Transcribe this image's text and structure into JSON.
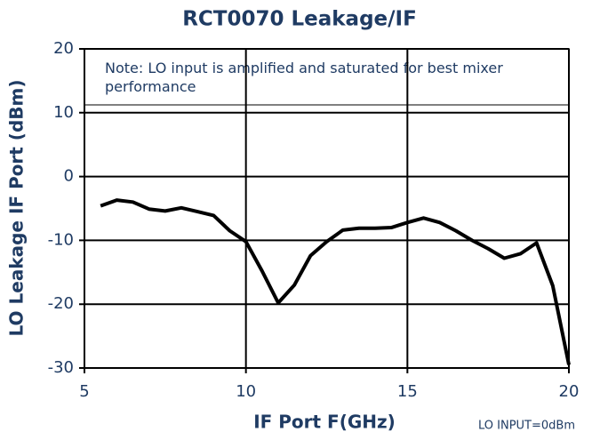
{
  "chart_data": {
    "type": "line",
    "title": "RCT0070 Leakage/IF",
    "xlabel": "IF Port F(GHz)",
    "ylabel": "LO Leakage IF Port (dBm)",
    "annotations": [
      "Note: LO input is amplified and saturated for best mixer performance",
      "LO INPUT=0dBm"
    ],
    "x": [
      5.5,
      6,
      6.5,
      7,
      7.5,
      8,
      8.5,
      9,
      9.5,
      10,
      10.5,
      11,
      11.5,
      12,
      12.5,
      13,
      13.5,
      14,
      14.5,
      15,
      15.5,
      16,
      16.5,
      17,
      17.5,
      18,
      18.5,
      19,
      19.5,
      20
    ],
    "series": [
      {
        "name": "LO Leakage",
        "color": "#000000",
        "values": [
          -4.6,
          -3.7,
          -4.0,
          -5.1,
          -5.4,
          -4.9,
          -5.5,
          -6.1,
          -8.5,
          -10.2,
          -14.8,
          -19.8,
          -17.0,
          -12.4,
          -10.2,
          -8.4,
          -8.1,
          -8.1,
          -8.0,
          -7.2,
          -6.5,
          -7.2,
          -8.5,
          -10.0,
          -11.3,
          -12.8,
          -12.1,
          -10.4,
          -17.1,
          -29.5
        ]
      }
    ],
    "xlim": [
      5,
      20
    ],
    "xticks": [
      5,
      10,
      15,
      20
    ],
    "ylim": [
      -30,
      20
    ],
    "yticks": [
      -30,
      -20,
      -10,
      0,
      10,
      20
    ],
    "grid": true
  }
}
